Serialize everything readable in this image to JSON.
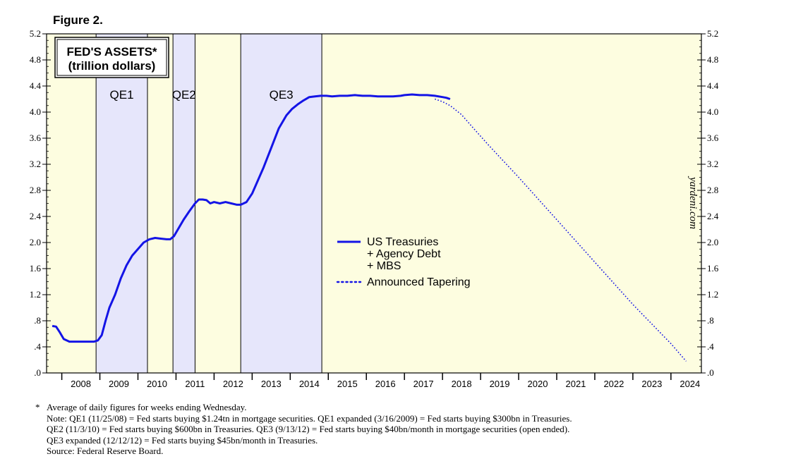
{
  "figure_label": "Figure 2.",
  "chart_data": {
    "type": "line",
    "title_lines": [
      "FED'S ASSETS*",
      "(trillion dollars)"
    ],
    "xlabel": "",
    "ylabel": "",
    "xlim": [
      2007.6,
      2024.8
    ],
    "ylim": [
      0,
      5.2
    ],
    "y_ticks": [
      0,
      0.4,
      0.8,
      1.2,
      1.6,
      2.0,
      2.4,
      2.8,
      3.2,
      3.6,
      4.0,
      4.4,
      4.8,
      5.2
    ],
    "y_tick_labels": [
      ".0",
      ".4",
      ".8",
      "1.2",
      "1.6",
      "2.0",
      "2.4",
      "2.8",
      "3.2",
      "3.6",
      "4.0",
      "4.4",
      "4.8",
      "5.2"
    ],
    "x_tick_labels": [
      "2008",
      "2009",
      "2010",
      "2011",
      "2012",
      "2013",
      "2014",
      "2015",
      "2016",
      "2017",
      "2018",
      "2019",
      "2020",
      "2021",
      "2022",
      "2023",
      "2024"
    ],
    "grid": false,
    "background_color": "#fdfde0",
    "qe_band_color": "#e6e6fb",
    "line_color": "#1414e6",
    "shaded_periods": [
      {
        "label": "QE1",
        "start": 2008.9,
        "end": 2010.25
      },
      {
        "label": "QE2",
        "start": 2010.92,
        "end": 2011.5
      },
      {
        "label": "QE3",
        "start": 2012.7,
        "end": 2014.83
      }
    ],
    "extra_period_lines": [
      2010.25,
      2010.92,
      2011.5,
      2012.7,
      2014.83
    ],
    "series": [
      {
        "name": "US Treasuries + Agency Debt + MBS",
        "style": "solid",
        "x": [
          2007.75,
          2007.85,
          2007.95,
          2008.05,
          2008.2,
          2008.4,
          2008.6,
          2008.75,
          2008.85,
          2008.95,
          2009.05,
          2009.15,
          2009.25,
          2009.4,
          2009.55,
          2009.7,
          2009.85,
          2010.0,
          2010.15,
          2010.3,
          2010.45,
          2010.6,
          2010.75,
          2010.85,
          2010.95,
          2011.05,
          2011.2,
          2011.35,
          2011.5,
          2011.6,
          2011.7,
          2011.8,
          2011.9,
          2012.0,
          2012.15,
          2012.3,
          2012.45,
          2012.6,
          2012.7,
          2012.85,
          2013.0,
          2013.15,
          2013.3,
          2013.5,
          2013.7,
          2013.9,
          2014.05,
          2014.2,
          2014.35,
          2014.5,
          2014.65,
          2014.8,
          2014.95,
          2015.1,
          2015.3,
          2015.5,
          2015.7,
          2015.9,
          2016.1,
          2016.3,
          2016.5,
          2016.7,
          2016.9,
          2017.0,
          2017.2,
          2017.4,
          2017.6,
          2017.8,
          2018.0,
          2018.1,
          2018.2
        ],
        "y": [
          0.72,
          0.71,
          0.62,
          0.52,
          0.48,
          0.48,
          0.48,
          0.48,
          0.48,
          0.5,
          0.58,
          0.8,
          1.0,
          1.2,
          1.45,
          1.65,
          1.8,
          1.9,
          2.0,
          2.05,
          2.07,
          2.06,
          2.05,
          2.05,
          2.1,
          2.2,
          2.35,
          2.48,
          2.6,
          2.66,
          2.66,
          2.65,
          2.6,
          2.62,
          2.6,
          2.62,
          2.6,
          2.58,
          2.58,
          2.62,
          2.75,
          2.95,
          3.15,
          3.45,
          3.75,
          3.95,
          4.05,
          4.12,
          4.18,
          4.23,
          4.24,
          4.25,
          4.25,
          4.24,
          4.25,
          4.25,
          4.26,
          4.25,
          4.25,
          4.24,
          4.24,
          4.24,
          4.25,
          4.26,
          4.27,
          4.26,
          4.26,
          4.25,
          4.23,
          4.22,
          4.2
        ]
      },
      {
        "name": "Announced Tapering",
        "style": "dotted",
        "x": [
          2017.8,
          2018.0,
          2018.2,
          2018.5,
          2018.8,
          2019.2,
          2020.0,
          2021.0,
          2022.0,
          2023.0,
          2024.0,
          2024.4
        ],
        "y": [
          4.2,
          4.16,
          4.1,
          3.96,
          3.76,
          3.5,
          3.0,
          2.35,
          1.7,
          1.05,
          0.45,
          0.18
        ]
      }
    ],
    "legend": {
      "placement": "center",
      "entries": [
        {
          "lines": [
            "US Treasuries",
            "+ Agency Debt",
            "+ MBS"
          ],
          "style": "solid"
        },
        {
          "lines": [
            "Announced Tapering"
          ],
          "style": "dotted"
        }
      ]
    },
    "watermark": "yardeni.com"
  },
  "notes": {
    "star": "*",
    "lines": [
      "Average of daily figures for weeks ending Wednesday.",
      "Note: QE1 (11/25/08) = Fed starts buying $1.24tn in mortgage securities. QE1 expanded (3/16/2009) = Fed starts buying $300bn in Treasuries.",
      "QE2 (11/3/10) = Fed starts buying $600bn in Treasuries. QE3 (9/13/12) = Fed starts buying $40bn/month in mortgage securities (open ended).",
      "QE3 expanded (12/12/12) = Fed starts buying $45bn/month in Treasuries.",
      "Source: Federal Reserve Board."
    ]
  }
}
